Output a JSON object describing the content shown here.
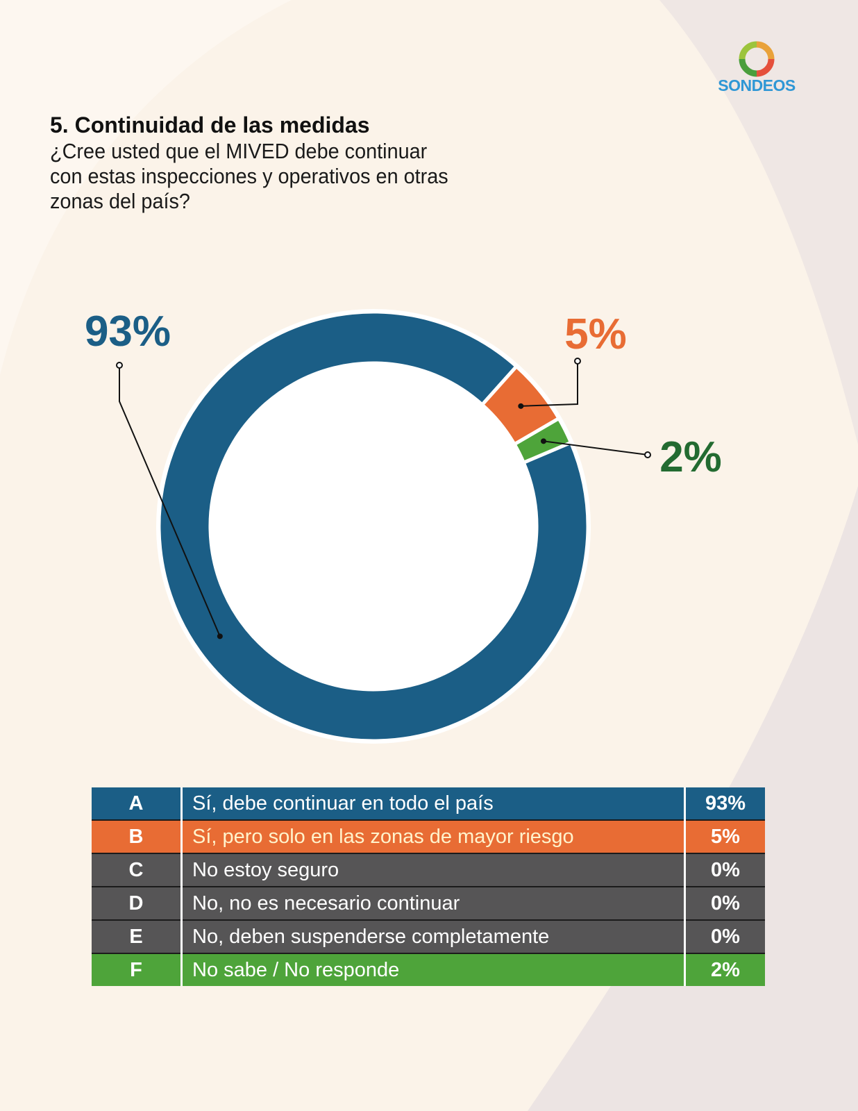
{
  "brand": {
    "name": "SONDEOS"
  },
  "header": {
    "title": "5. Continuidad de las medidas",
    "question": "¿Cree usted que el MIVED debe continuar con estas inspecciones y operativos en otras zonas del país?"
  },
  "colors": {
    "background": "#fbf3e9",
    "blue": "#1b5e86",
    "orange": "#e86c34",
    "green": "#4ea43a",
    "gray": "#565556",
    "label_green": "#236b31"
  },
  "chart_data": {
    "type": "pie",
    "style": "donut",
    "slices": [
      {
        "value": 93,
        "label": "93%",
        "color": "#1b5e86",
        "label_color": "#1b5e86"
      },
      {
        "value": 5,
        "label": "5%",
        "color": "#e86c34",
        "label_color": "#e86c34"
      },
      {
        "value": 2,
        "label": "2%",
        "color": "#4ea43a",
        "label_color": "#236b31"
      }
    ]
  },
  "legend": {
    "rows": [
      {
        "letter": "A",
        "label": "Sí, debe continuar en todo el país",
        "pct": "93%",
        "color": "#1b5e86",
        "label_color": "#ffffff"
      },
      {
        "letter": "B",
        "label": "Sí, pero solo en las zonas de mayor riesgo",
        "pct": "5%",
        "color": "#e86c34",
        "label_color": "#fff3cc"
      },
      {
        "letter": "C",
        "label": "No estoy seguro",
        "pct": "0%",
        "color": "#565556",
        "label_color": "#ffffff"
      },
      {
        "letter": "D",
        "label": "No, no es necesario continuar",
        "pct": "0%",
        "color": "#565556",
        "label_color": "#ffffff"
      },
      {
        "letter": "E",
        "label": "No, deben suspenderse completamente",
        "pct": "0%",
        "color": "#565556",
        "label_color": "#ffffff"
      },
      {
        "letter": "F",
        "label": "No sabe / No responde",
        "pct": "2%",
        "color": "#4ea43a",
        "label_color": "#ffffff"
      }
    ]
  }
}
